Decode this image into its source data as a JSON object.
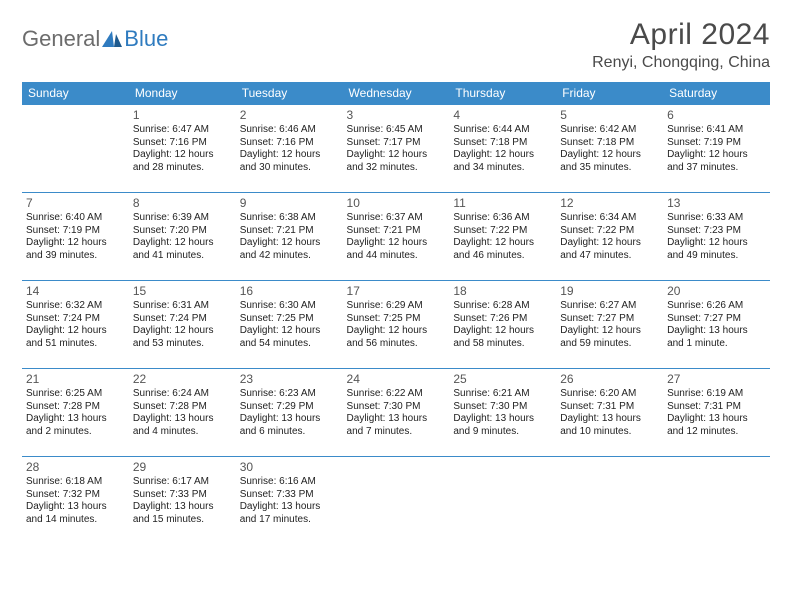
{
  "brand": {
    "general": "General",
    "blue": "Blue"
  },
  "title": "April 2024",
  "location": "Renyi, Chongqing, China",
  "colors": {
    "header_bg": "#3b8bc9",
    "header_text": "#ffffff",
    "border": "#3b8bc9",
    "logo_gray": "#6c6c6c",
    "logo_blue": "#2f7bbf",
    "text": "#222222",
    "title_color": "#4a4a4a"
  },
  "dayHeaders": [
    "Sunday",
    "Monday",
    "Tuesday",
    "Wednesday",
    "Thursday",
    "Friday",
    "Saturday"
  ],
  "weeks": [
    [
      null,
      {
        "n": "1",
        "sr": "6:47 AM",
        "ss": "7:16 PM",
        "dl": "12 hours and 28 minutes."
      },
      {
        "n": "2",
        "sr": "6:46 AM",
        "ss": "7:16 PM",
        "dl": "12 hours and 30 minutes."
      },
      {
        "n": "3",
        "sr": "6:45 AM",
        "ss": "7:17 PM",
        "dl": "12 hours and 32 minutes."
      },
      {
        "n": "4",
        "sr": "6:44 AM",
        "ss": "7:18 PM",
        "dl": "12 hours and 34 minutes."
      },
      {
        "n": "5",
        "sr": "6:42 AM",
        "ss": "7:18 PM",
        "dl": "12 hours and 35 minutes."
      },
      {
        "n": "6",
        "sr": "6:41 AM",
        "ss": "7:19 PM",
        "dl": "12 hours and 37 minutes."
      }
    ],
    [
      {
        "n": "7",
        "sr": "6:40 AM",
        "ss": "7:19 PM",
        "dl": "12 hours and 39 minutes."
      },
      {
        "n": "8",
        "sr": "6:39 AM",
        "ss": "7:20 PM",
        "dl": "12 hours and 41 minutes."
      },
      {
        "n": "9",
        "sr": "6:38 AM",
        "ss": "7:21 PM",
        "dl": "12 hours and 42 minutes."
      },
      {
        "n": "10",
        "sr": "6:37 AM",
        "ss": "7:21 PM",
        "dl": "12 hours and 44 minutes."
      },
      {
        "n": "11",
        "sr": "6:36 AM",
        "ss": "7:22 PM",
        "dl": "12 hours and 46 minutes."
      },
      {
        "n": "12",
        "sr": "6:34 AM",
        "ss": "7:22 PM",
        "dl": "12 hours and 47 minutes."
      },
      {
        "n": "13",
        "sr": "6:33 AM",
        "ss": "7:23 PM",
        "dl": "12 hours and 49 minutes."
      }
    ],
    [
      {
        "n": "14",
        "sr": "6:32 AM",
        "ss": "7:24 PM",
        "dl": "12 hours and 51 minutes."
      },
      {
        "n": "15",
        "sr": "6:31 AM",
        "ss": "7:24 PM",
        "dl": "12 hours and 53 minutes."
      },
      {
        "n": "16",
        "sr": "6:30 AM",
        "ss": "7:25 PM",
        "dl": "12 hours and 54 minutes."
      },
      {
        "n": "17",
        "sr": "6:29 AM",
        "ss": "7:25 PM",
        "dl": "12 hours and 56 minutes."
      },
      {
        "n": "18",
        "sr": "6:28 AM",
        "ss": "7:26 PM",
        "dl": "12 hours and 58 minutes."
      },
      {
        "n": "19",
        "sr": "6:27 AM",
        "ss": "7:27 PM",
        "dl": "12 hours and 59 minutes."
      },
      {
        "n": "20",
        "sr": "6:26 AM",
        "ss": "7:27 PM",
        "dl": "13 hours and 1 minute."
      }
    ],
    [
      {
        "n": "21",
        "sr": "6:25 AM",
        "ss": "7:28 PM",
        "dl": "13 hours and 2 minutes."
      },
      {
        "n": "22",
        "sr": "6:24 AM",
        "ss": "7:28 PM",
        "dl": "13 hours and 4 minutes."
      },
      {
        "n": "23",
        "sr": "6:23 AM",
        "ss": "7:29 PM",
        "dl": "13 hours and 6 minutes."
      },
      {
        "n": "24",
        "sr": "6:22 AM",
        "ss": "7:30 PM",
        "dl": "13 hours and 7 minutes."
      },
      {
        "n": "25",
        "sr": "6:21 AM",
        "ss": "7:30 PM",
        "dl": "13 hours and 9 minutes."
      },
      {
        "n": "26",
        "sr": "6:20 AM",
        "ss": "7:31 PM",
        "dl": "13 hours and 10 minutes."
      },
      {
        "n": "27",
        "sr": "6:19 AM",
        "ss": "7:31 PM",
        "dl": "13 hours and 12 minutes."
      }
    ],
    [
      {
        "n": "28",
        "sr": "6:18 AM",
        "ss": "7:32 PM",
        "dl": "13 hours and 14 minutes."
      },
      {
        "n": "29",
        "sr": "6:17 AM",
        "ss": "7:33 PM",
        "dl": "13 hours and 15 minutes."
      },
      {
        "n": "30",
        "sr": "6:16 AM",
        "ss": "7:33 PM",
        "dl": "13 hours and 17 minutes."
      },
      null,
      null,
      null,
      null
    ]
  ],
  "labels": {
    "sunrise": "Sunrise: ",
    "sunset": "Sunset: ",
    "daylight": "Daylight: "
  }
}
